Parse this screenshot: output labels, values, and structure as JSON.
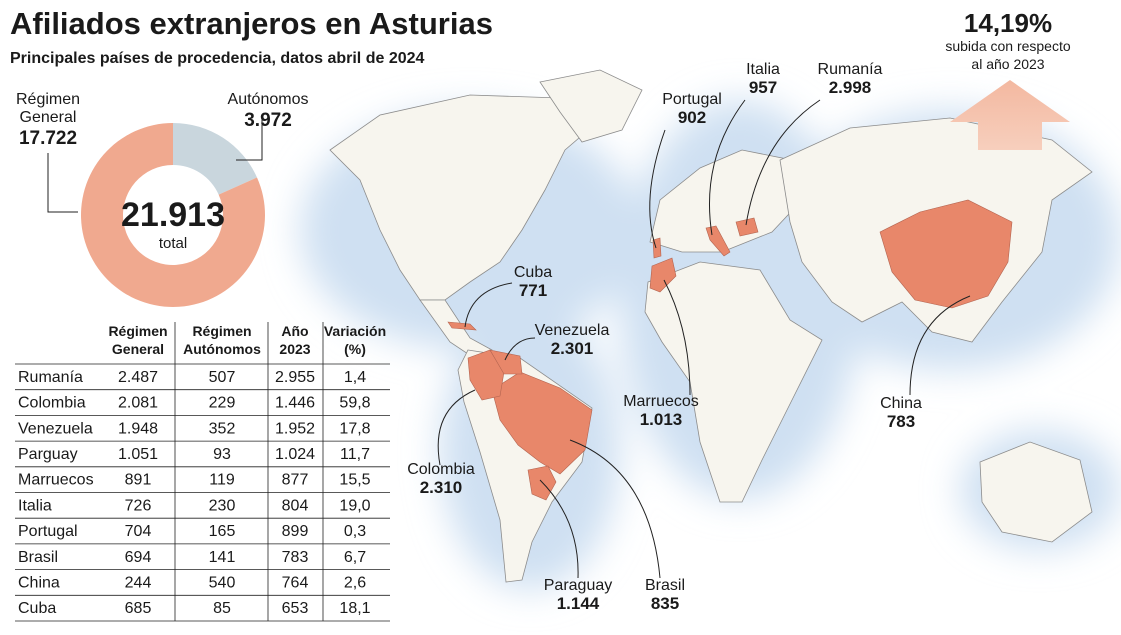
{
  "header": {
    "title": "Afiliados extranjeros en Asturias",
    "subtitle": "Principales países de procedencia, datos abril de 2024"
  },
  "highlight": {
    "value": "14,19%",
    "caption_1": "subida con respecto",
    "caption_2": "al año 2023"
  },
  "chart_data": {
    "type": "donut",
    "categories": [
      "Régimen General",
      "Autónomos"
    ],
    "values": [
      17722,
      3972
    ],
    "value_labels": [
      "17.722",
      "3.972"
    ],
    "colors": [
      "#f0a98f",
      "#c9d6dd"
    ],
    "center_value": "21.913",
    "center_caption": "total"
  },
  "table": {
    "columns": [
      [
        "Régimen",
        "General"
      ],
      [
        "Régimen",
        "Autónomos"
      ],
      [
        "Año",
        "2023"
      ],
      [
        "Variación",
        "(%)"
      ]
    ],
    "rows": [
      [
        "Rumanía",
        "2.487",
        "507",
        "2.955",
        "1,4"
      ],
      [
        "Colombia",
        "2.081",
        "229",
        "1.446",
        "59,8"
      ],
      [
        "Venezuela",
        "1.948",
        "352",
        "1.952",
        "17,8"
      ],
      [
        "Parguay",
        "1.051",
        "93",
        "1.024",
        "11,7"
      ],
      [
        "Marruecos",
        "891",
        "119",
        "877",
        "15,5"
      ],
      [
        "Italia",
        "726",
        "230",
        "804",
        "19,0"
      ],
      [
        "Portugal",
        "704",
        "165",
        "899",
        "0,3"
      ],
      [
        "Brasil",
        "694",
        "141",
        "783",
        "6,7"
      ],
      [
        "China",
        "244",
        "540",
        "764",
        "2,6"
      ],
      [
        "Cuba",
        "685",
        "85",
        "653",
        "18,1"
      ]
    ]
  },
  "map_labels": [
    {
      "name": "Cuba",
      "value": "771"
    },
    {
      "name": "Venezuela",
      "value": "2.301"
    },
    {
      "name": "Colombia",
      "value": "2.310"
    },
    {
      "name": "Paraguay",
      "value": "1.144"
    },
    {
      "name": "Brasil",
      "value": "835"
    },
    {
      "name": "Marruecos",
      "value": "1.013"
    },
    {
      "name": "Portugal",
      "value": "902"
    },
    {
      "name": "Italia",
      "value": "957"
    },
    {
      "name": "Rumanía",
      "value": "2.998"
    },
    {
      "name": "China",
      "value": "783"
    }
  ]
}
